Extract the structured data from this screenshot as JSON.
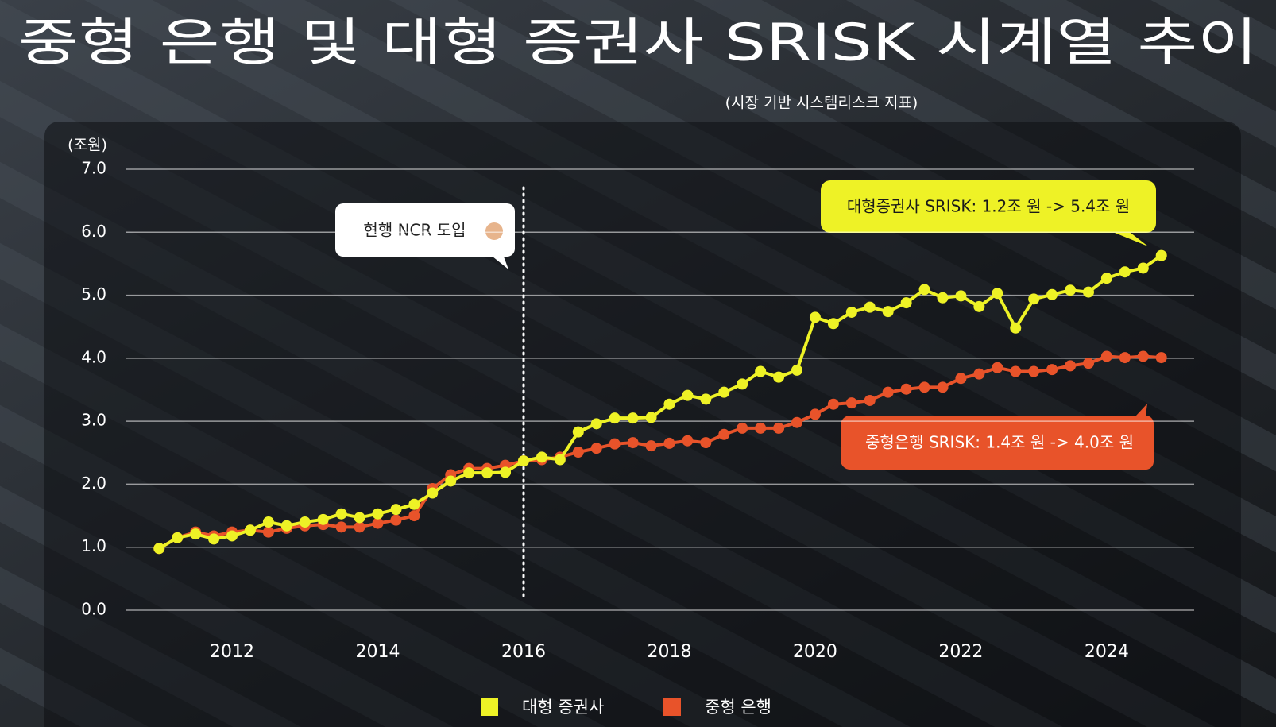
{
  "chart_data": {
    "type": "line",
    "title": "중형 은행 및 대형 증권사 SRISK 시계열 추이",
    "subtitle": "(시장 기반 시스템리스크 지표)",
    "y_label": "(조원)",
    "x": [
      2011,
      2011.25,
      2011.5,
      2011.75,
      2012,
      2012.25,
      2012.5,
      2012.75,
      2013,
      2013.25,
      2013.5,
      2013.75,
      2014,
      2014.25,
      2014.5,
      2014.75,
      2015,
      2015.25,
      2015.5,
      2015.75,
      2016,
      2016.25,
      2016.5,
      2016.75,
      2017,
      2017.25,
      2017.5,
      2017.75,
      2018,
      2018.25,
      2018.5,
      2018.75,
      2019,
      2019.25,
      2019.5,
      2019.75,
      2020,
      2020.25,
      2020.5,
      2020.75,
      2021,
      2021.25,
      2021.5,
      2021.75,
      2022,
      2022.25,
      2022.5,
      2022.75,
      2023,
      2023.25,
      2023.5,
      2023.75,
      2024,
      2024.25,
      2024.5,
      2024.75
    ],
    "series": [
      {
        "name": "대형 증권사",
        "color": "#eef226",
        "values": [
          0.98,
          1.15,
          1.21,
          1.13,
          1.18,
          1.27,
          1.4,
          1.34,
          1.4,
          1.44,
          1.53,
          1.47,
          1.53,
          1.6,
          1.68,
          1.86,
          2.05,
          2.18,
          2.18,
          2.19,
          2.37,
          2.43,
          2.39,
          2.83,
          2.96,
          3.05,
          3.05,
          3.06,
          3.27,
          3.41,
          3.35,
          3.46,
          3.59,
          3.79,
          3.7,
          3.81,
          4.65,
          4.55,
          4.73,
          4.81,
          4.74,
          4.88,
          5.09,
          4.96,
          4.99,
          4.82,
          5.03,
          4.48,
          4.94,
          5.01,
          5.08,
          5.05,
          5.27,
          5.37,
          5.43,
          5.63
        ]
      },
      {
        "name": "중형 은행",
        "color": "#e8532a",
        "values": [
          0.98,
          1.15,
          1.24,
          1.18,
          1.24,
          1.27,
          1.24,
          1.3,
          1.34,
          1.36,
          1.32,
          1.32,
          1.38,
          1.43,
          1.5,
          1.93,
          2.15,
          2.25,
          2.25,
          2.3,
          2.37,
          2.39,
          2.43,
          2.51,
          2.57,
          2.64,
          2.66,
          2.61,
          2.65,
          2.69,
          2.66,
          2.79,
          2.89,
          2.89,
          2.89,
          2.98,
          3.11,
          3.27,
          3.29,
          3.33,
          3.46,
          3.51,
          3.54,
          3.54,
          3.68,
          3.75,
          3.85,
          3.79,
          3.79,
          3.82,
          3.88,
          3.92,
          4.03,
          4.01,
          4.03,
          4.01
        ]
      }
    ],
    "xlim": [
      2010.55,
      2025.2
    ],
    "xticks": [
      2012,
      2014,
      2016,
      2018,
      2020,
      2022,
      2024
    ],
    "ylim": [
      0,
      7
    ],
    "yticks": [
      {
        "value": 0,
        "label": "0.0"
      },
      {
        "value": 1,
        "label": "1.0"
      },
      {
        "value": 2,
        "label": "2.0"
      },
      {
        "value": 3,
        "label": "3.0"
      },
      {
        "value": 4,
        "label": "4.0"
      },
      {
        "value": 5,
        "label": "5.0"
      },
      {
        "value": 6,
        "label": "6.0"
      },
      {
        "value": 7,
        "label": "7.0"
      }
    ],
    "grid": true,
    "legend": "bottom",
    "annotations": [
      {
        "text": "현행 NCR 도입",
        "x": 2016
      },
      {
        "text": "대형증권사 SRISK: 1.2조 원 -> 5.4조 원"
      },
      {
        "text": "중형은행 SRISK: 1.4조 원 -> 4.0조 원"
      }
    ]
  }
}
